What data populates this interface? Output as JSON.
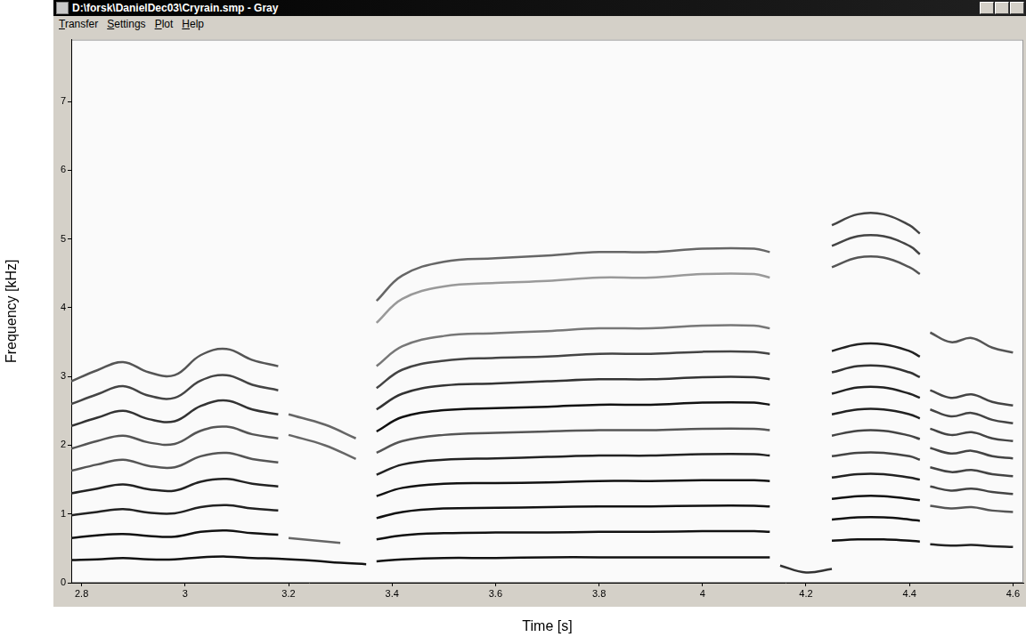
{
  "window": {
    "title": "D:\\forsk\\DanielDec03\\Cryrain.smp - Gray",
    "menu": [
      "Transfer",
      "Settings",
      "Plot",
      "Help"
    ]
  },
  "chart_data": {
    "type": "line",
    "x_label": "Time [s]",
    "y_label": "Frequency [kHz]",
    "xlim": [
      2.78,
      4.62
    ],
    "ylim": [
      0,
      7.9
    ],
    "xticks": [
      {
        "value": 2.8,
        "label": "2.8"
      },
      {
        "value": 3,
        "label": "3"
      },
      {
        "value": 3.2,
        "label": "3.2"
      },
      {
        "value": 3.4,
        "label": "3.4"
      },
      {
        "value": 3.6,
        "label": "3.6"
      },
      {
        "value": 3.8,
        "label": "3.8"
      },
      {
        "value": 4,
        "label": "4"
      },
      {
        "value": 4.2,
        "label": "4.2"
      },
      {
        "value": 4.4,
        "label": "4.4"
      },
      {
        "value": 4.6,
        "label": "4.6"
      }
    ],
    "yticks": [
      0,
      1,
      2,
      3,
      4,
      5,
      6,
      7
    ],
    "grid": false,
    "series": [
      {
        "color": "#111111",
        "x": [
          2.78,
          2.83,
          2.88,
          2.93,
          2.98,
          3.03,
          3.08,
          3.13,
          3.18,
          3.25,
          3.3,
          3.35
        ],
        "values": [
          0.33,
          0.34,
          0.36,
          0.34,
          0.34,
          0.37,
          0.38,
          0.36,
          0.35,
          0.32,
          0.29,
          0.27
        ]
      },
      {
        "color": "#111111",
        "x": [
          2.78,
          2.83,
          2.88,
          2.93,
          2.98,
          3.03,
          3.08,
          3.13,
          3.18
        ],
        "values": [
          0.65,
          0.69,
          0.71,
          0.68,
          0.67,
          0.74,
          0.76,
          0.72,
          0.7
        ]
      },
      {
        "color": "#222222",
        "x": [
          2.78,
          2.83,
          2.88,
          2.93,
          2.98,
          3.03,
          3.08,
          3.13,
          3.18
        ],
        "values": [
          0.98,
          1.03,
          1.07,
          1.02,
          1.01,
          1.1,
          1.13,
          1.08,
          1.05
        ]
      },
      {
        "color": "#222222",
        "x": [
          2.78,
          2.83,
          2.88,
          2.93,
          2.98,
          3.03,
          3.08,
          3.13,
          3.18
        ],
        "values": [
          1.3,
          1.37,
          1.43,
          1.36,
          1.34,
          1.47,
          1.51,
          1.44,
          1.4
        ]
      },
      {
        "color": "#555555",
        "x": [
          2.78,
          2.83,
          2.88,
          2.93,
          2.98,
          3.03,
          3.08,
          3.13,
          3.18
        ],
        "values": [
          1.63,
          1.72,
          1.79,
          1.7,
          1.68,
          1.84,
          1.89,
          1.8,
          1.75
        ]
      },
      {
        "color": "#555555",
        "x": [
          2.78,
          2.83,
          2.88,
          2.93,
          2.98,
          3.03,
          3.08,
          3.13,
          3.18
        ],
        "values": [
          1.95,
          2.06,
          2.14,
          2.04,
          2.02,
          2.21,
          2.27,
          2.16,
          2.1
        ]
      },
      {
        "color": "#333333",
        "x": [
          2.78,
          2.83,
          2.88,
          2.93,
          2.98,
          3.03,
          3.08,
          3.13,
          3.18
        ],
        "values": [
          2.28,
          2.4,
          2.5,
          2.38,
          2.35,
          2.57,
          2.65,
          2.52,
          2.45
        ]
      },
      {
        "color": "#444444",
        "x": [
          2.78,
          2.83,
          2.88,
          2.93,
          2.98,
          3.03,
          3.08,
          3.13,
          3.18
        ],
        "values": [
          2.6,
          2.74,
          2.86,
          2.72,
          2.69,
          2.94,
          3.02,
          2.88,
          2.8
        ]
      },
      {
        "color": "#555555",
        "x": [
          2.78,
          2.83,
          2.88,
          2.93,
          2.98,
          3.03,
          3.08,
          3.13,
          3.18
        ],
        "values": [
          2.93,
          3.09,
          3.21,
          3.06,
          3.02,
          3.31,
          3.4,
          3.24,
          3.15
        ]
      },
      {
        "color": "#666666",
        "x": [
          3.2,
          3.27,
          3.33
        ],
        "values": [
          2.45,
          2.3,
          2.1
        ]
      },
      {
        "color": "#666666",
        "x": [
          3.2,
          3.27,
          3.33
        ],
        "values": [
          2.15,
          2.0,
          1.8
        ]
      },
      {
        "color": "#666666",
        "x": [
          3.2,
          3.3
        ],
        "values": [
          0.65,
          0.58
        ]
      },
      {
        "color": "#111111",
        "x": [
          3.37,
          3.42,
          3.5,
          3.6,
          3.7,
          3.8,
          3.9,
          4.0,
          4.1,
          4.13
        ],
        "values": [
          0.31,
          0.34,
          0.36,
          0.36,
          0.37,
          0.37,
          0.37,
          0.37,
          0.37,
          0.37
        ]
      },
      {
        "color": "#111111",
        "x": [
          3.37,
          3.42,
          3.5,
          3.6,
          3.7,
          3.8,
          3.9,
          4.0,
          4.1,
          4.13
        ],
        "values": [
          0.63,
          0.69,
          0.72,
          0.73,
          0.73,
          0.74,
          0.74,
          0.75,
          0.75,
          0.74
        ]
      },
      {
        "color": "#111111",
        "x": [
          3.37,
          3.42,
          3.5,
          3.6,
          3.7,
          3.8,
          3.9,
          4.0,
          4.1,
          4.13
        ],
        "values": [
          0.94,
          1.03,
          1.08,
          1.09,
          1.1,
          1.11,
          1.11,
          1.12,
          1.12,
          1.11
        ]
      },
      {
        "color": "#111111",
        "x": [
          3.37,
          3.42,
          3.5,
          3.6,
          3.7,
          3.8,
          3.9,
          4.0,
          4.1,
          4.13
        ],
        "values": [
          1.26,
          1.38,
          1.44,
          1.45,
          1.46,
          1.48,
          1.48,
          1.49,
          1.49,
          1.48
        ]
      },
      {
        "color": "#222222",
        "x": [
          3.37,
          3.42,
          3.5,
          3.6,
          3.7,
          3.8,
          3.9,
          4.0,
          4.1,
          4.13
        ],
        "values": [
          1.57,
          1.72,
          1.79,
          1.81,
          1.83,
          1.85,
          1.85,
          1.87,
          1.87,
          1.85
        ]
      },
      {
        "color": "#555555",
        "x": [
          3.37,
          3.42,
          3.5,
          3.6,
          3.7,
          3.8,
          3.9,
          4.0,
          4.1,
          4.13
        ],
        "values": [
          1.89,
          2.06,
          2.15,
          2.18,
          2.2,
          2.22,
          2.22,
          2.24,
          2.24,
          2.22
        ]
      },
      {
        "color": "#111111",
        "x": [
          3.37,
          3.42,
          3.5,
          3.6,
          3.7,
          3.8,
          3.9,
          4.0,
          4.1,
          4.13
        ],
        "values": [
          2.2,
          2.41,
          2.51,
          2.54,
          2.56,
          2.59,
          2.59,
          2.62,
          2.62,
          2.59
        ]
      },
      {
        "color": "#333333",
        "x": [
          3.37,
          3.42,
          3.5,
          3.6,
          3.7,
          3.8,
          3.9,
          4.0,
          4.1,
          4.13
        ],
        "values": [
          2.52,
          2.75,
          2.87,
          2.9,
          2.93,
          2.96,
          2.96,
          2.99,
          2.99,
          2.96
        ]
      },
      {
        "color": "#444444",
        "x": [
          3.37,
          3.42,
          3.5,
          3.6,
          3.7,
          3.8,
          3.9,
          4.0,
          4.1,
          4.13
        ],
        "values": [
          2.83,
          3.1,
          3.23,
          3.27,
          3.29,
          3.33,
          3.33,
          3.36,
          3.36,
          3.33
        ]
      },
      {
        "color": "#777777",
        "x": [
          3.37,
          3.42,
          3.5,
          3.6,
          3.7,
          3.8,
          3.9,
          4.0,
          4.1,
          4.13
        ],
        "values": [
          3.15,
          3.44,
          3.59,
          3.63,
          3.66,
          3.7,
          3.7,
          3.74,
          3.74,
          3.7
        ]
      },
      {
        "color": "#999999",
        "x": [
          3.37,
          3.42,
          3.5,
          3.6,
          3.7,
          3.8,
          3.9,
          4.0,
          4.1,
          4.13
        ],
        "values": [
          3.78,
          4.13,
          4.31,
          4.36,
          4.39,
          4.44,
          4.44,
          4.49,
          4.49,
          4.44
        ]
      },
      {
        "color": "#666666",
        "x": [
          3.37,
          3.42,
          3.5,
          3.6,
          3.7,
          3.8,
          3.9,
          4.0,
          4.1,
          4.13
        ],
        "values": [
          4.1,
          4.47,
          4.67,
          4.72,
          4.76,
          4.81,
          4.81,
          4.86,
          4.86,
          4.81
        ]
      },
      {
        "color": "#333333",
        "x": [
          4.15,
          4.2,
          4.25
        ],
        "values": [
          0.25,
          0.15,
          0.2
        ]
      },
      {
        "color": "#111111",
        "x": [
          4.25,
          4.3,
          4.35,
          4.4,
          4.42
        ],
        "values": [
          0.61,
          0.63,
          0.63,
          0.61,
          0.6
        ]
      },
      {
        "color": "#111111",
        "x": [
          4.25,
          4.3,
          4.35,
          4.4,
          4.42
        ],
        "values": [
          0.92,
          0.95,
          0.95,
          0.92,
          0.9
        ]
      },
      {
        "color": "#111111",
        "x": [
          4.25,
          4.3,
          4.35,
          4.4,
          4.42
        ],
        "values": [
          1.22,
          1.26,
          1.26,
          1.22,
          1.2
        ]
      },
      {
        "color": "#222222",
        "x": [
          4.25,
          4.3,
          4.35,
          4.4,
          4.42
        ],
        "values": [
          1.53,
          1.58,
          1.58,
          1.53,
          1.5
        ]
      },
      {
        "color": "#444444",
        "x": [
          4.25,
          4.3,
          4.35,
          4.4,
          4.42
        ],
        "values": [
          1.84,
          1.89,
          1.89,
          1.84,
          1.79
        ]
      },
      {
        "color": "#444444",
        "x": [
          4.25,
          4.3,
          4.35,
          4.4,
          4.42
        ],
        "values": [
          2.14,
          2.21,
          2.21,
          2.14,
          2.09
        ]
      },
      {
        "color": "#222222",
        "x": [
          4.25,
          4.3,
          4.35,
          4.4,
          4.42
        ],
        "values": [
          2.45,
          2.52,
          2.52,
          2.45,
          2.39
        ]
      },
      {
        "color": "#222222",
        "x": [
          4.25,
          4.3,
          4.35,
          4.4,
          4.42
        ],
        "values": [
          2.75,
          2.84,
          2.84,
          2.75,
          2.69
        ]
      },
      {
        "color": "#333333",
        "x": [
          4.25,
          4.3,
          4.35,
          4.4,
          4.42
        ],
        "values": [
          3.06,
          3.15,
          3.15,
          3.06,
          2.99
        ]
      },
      {
        "color": "#222222",
        "x": [
          4.25,
          4.3,
          4.35,
          4.4,
          4.42
        ],
        "values": [
          3.37,
          3.47,
          3.47,
          3.37,
          3.29
        ]
      },
      {
        "color": "#555555",
        "x": [
          4.25,
          4.3,
          4.35,
          4.4,
          4.42
        ],
        "values": [
          4.59,
          4.73,
          4.73,
          4.59,
          4.49
        ]
      },
      {
        "color": "#444444",
        "x": [
          4.25,
          4.3,
          4.35,
          4.4,
          4.42
        ],
        "values": [
          4.9,
          5.04,
          5.04,
          4.9,
          4.78
        ]
      },
      {
        "color": "#444444",
        "x": [
          4.25,
          4.3,
          4.35,
          4.4,
          4.42
        ],
        "values": [
          5.2,
          5.36,
          5.36,
          5.2,
          5.08
        ]
      },
      {
        "color": "#222222",
        "x": [
          4.44,
          4.48,
          4.52,
          4.56,
          4.6
        ],
        "values": [
          0.56,
          0.54,
          0.55,
          0.53,
          0.52
        ]
      },
      {
        "color": "#555555",
        "x": [
          4.44,
          4.48,
          4.52,
          4.56,
          4.6
        ],
        "values": [
          1.12,
          1.08,
          1.1,
          1.05,
          1.03
        ]
      },
      {
        "color": "#444444",
        "x": [
          4.44,
          4.48,
          4.52,
          4.56,
          4.6
        ],
        "values": [
          1.4,
          1.34,
          1.37,
          1.32,
          1.29
        ]
      },
      {
        "color": "#444444",
        "x": [
          4.44,
          4.48,
          4.52,
          4.56,
          4.6
        ],
        "values": [
          1.68,
          1.61,
          1.64,
          1.58,
          1.55
        ]
      },
      {
        "color": "#444444",
        "x": [
          4.44,
          4.48,
          4.52,
          4.56,
          4.6
        ],
        "values": [
          1.96,
          1.88,
          1.92,
          1.84,
          1.81
        ]
      },
      {
        "color": "#444444",
        "x": [
          4.44,
          4.48,
          4.52,
          4.56,
          4.6
        ],
        "values": [
          2.24,
          2.15,
          2.19,
          2.1,
          2.06
        ]
      },
      {
        "color": "#444444",
        "x": [
          4.44,
          4.48,
          4.52,
          4.56,
          4.6
        ],
        "values": [
          2.52,
          2.42,
          2.47,
          2.37,
          2.32
        ]
      },
      {
        "color": "#444444",
        "x": [
          4.44,
          4.48,
          4.52,
          4.56,
          4.6
        ],
        "values": [
          2.8,
          2.69,
          2.74,
          2.63,
          2.58
        ]
      },
      {
        "color": "#555555",
        "x": [
          4.44,
          4.48,
          4.52,
          4.56,
          4.6
        ],
        "values": [
          3.64,
          3.5,
          3.56,
          3.42,
          3.35
        ]
      }
    ]
  }
}
